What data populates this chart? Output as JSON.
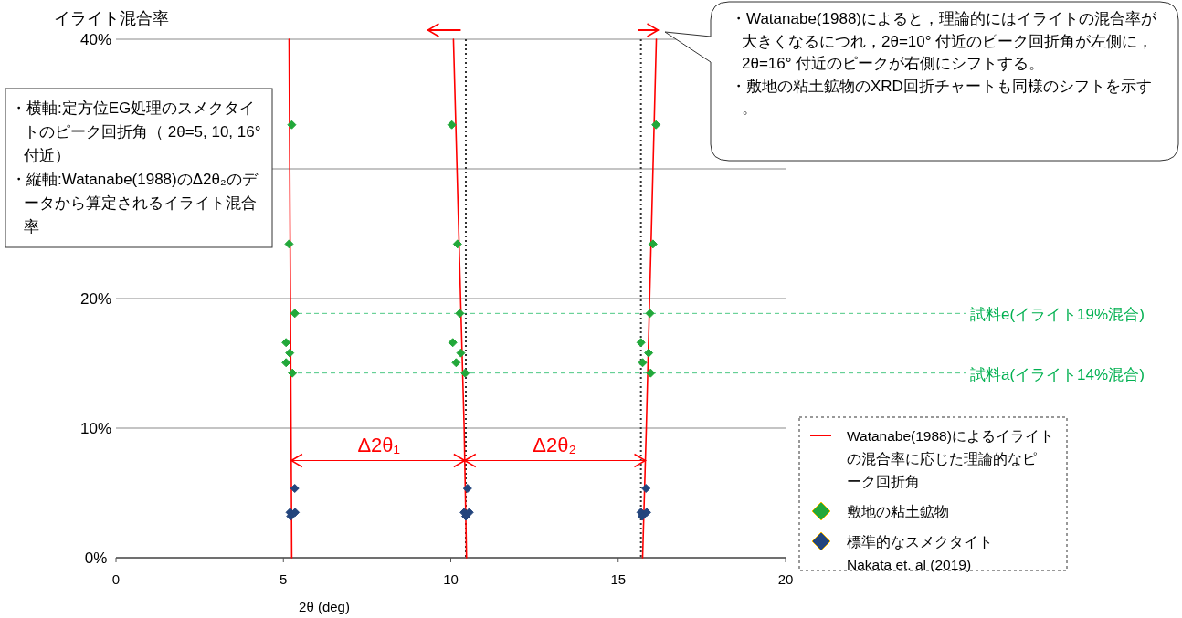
{
  "chart_data": {
    "type": "scatter",
    "xlabel": "2θ (deg)",
    "ylabel": "イライト混合率",
    "xlim": [
      0,
      20
    ],
    "ylim": [
      0,
      40
    ],
    "xticks": [
      0,
      5,
      10,
      15,
      20
    ],
    "yticks": [
      {
        "value": 0,
        "label": "0%"
      },
      {
        "value": 10,
        "label": "10%"
      },
      {
        "value": 20,
        "label": "20%"
      },
      {
        "value": 30,
        "label": null
      },
      {
        "value": 40,
        "label": "40%"
      }
    ],
    "grid": "y",
    "legend": "bottom right",
    "marker": "diamond",
    "series": [
      {
        "name": "Watanabe(1988)によるイライトの混合率に応じた理論的なピーク回折角",
        "type": "line",
        "marker": "none",
        "color": "#ff0000",
        "x": [
          5.25,
          5.17,
          null,
          10.47,
          10.4,
          10.08,
          null,
          15.73,
          15.84,
          16.14
        ],
        "values": [
          0,
          40,
          null,
          0,
          10,
          40,
          null,
          0,
          10,
          40
        ]
      },
      {
        "name": "敷地の粘土鉱物",
        "color": "#22a83a",
        "x": [
          5.25,
          10.03,
          16.13,
          5.17,
          10.2,
          16.04,
          5.34,
          10.27,
          15.95,
          5.08,
          10.06,
          15.68,
          5.19,
          10.3,
          15.91,
          5.08,
          10.16,
          15.73,
          5.27,
          10.43,
          15.97
        ],
        "values": [
          33.4,
          33.4,
          33.4,
          24.2,
          24.2,
          24.2,
          18.85,
          18.85,
          18.85,
          16.6,
          16.6,
          16.6,
          15.8,
          15.8,
          15.8,
          15.05,
          15.05,
          15.05,
          14.25,
          14.25,
          14.25
        ]
      },
      {
        "name": "標準的なスメクタイト\nNakata et. al (2019)",
        "color": "#23457d",
        "x": [
          5.34,
          5.2,
          5.35,
          5.22,
          10.5,
          10.4,
          10.55,
          10.45,
          15.83,
          15.68,
          15.85,
          15.72
        ],
        "values": [
          5.35,
          3.5,
          3.5,
          3.2,
          5.35,
          3.5,
          3.5,
          3.2,
          5.35,
          3.5,
          3.5,
          3.2
        ]
      }
    ],
    "ref_lines": [
      {
        "axis": "x",
        "value": 10.45,
        "color": "#333333",
        "line_style": "dotted"
      },
      {
        "axis": "x",
        "value": 15.68,
        "color": "#333333",
        "line_style": "dotted"
      },
      {
        "axis": "y",
        "value": 18.85,
        "label": "試料e(イライト19%混合)",
        "color": "#00b050",
        "line_style": "dashed"
      },
      {
        "axis": "y",
        "value": 14.25,
        "label": "試料a(イライト14%混合)",
        "color": "#00b050",
        "line_style": "dashed"
      }
    ],
    "annotations": [
      "・横軸:定方位EG処理のスメクタイトのピーク回折角（ 2θ=5, 10, 16° 付近）・縦軸:Watanabe(1988)のΔ2θ₂のデータから算定されるイライト混合率",
      "・Watanabe(1988)によると，理論的にはイライトの混合率が大きくなるにつれ，2θ=10° 付近のピーク回折角が左側に，2θ=16° 付近のピークが右側にシフトする。・敷地の粘土鉱物のXRD回折チャートも同様のシフトを示す。",
      {
        "text": "Δ2θ₁",
        "x": 7.85,
        "y": 7.5
      },
      {
        "text": "Δ2θ₂",
        "x": 13.1,
        "y": 7.5
      }
    ]
  }
}
